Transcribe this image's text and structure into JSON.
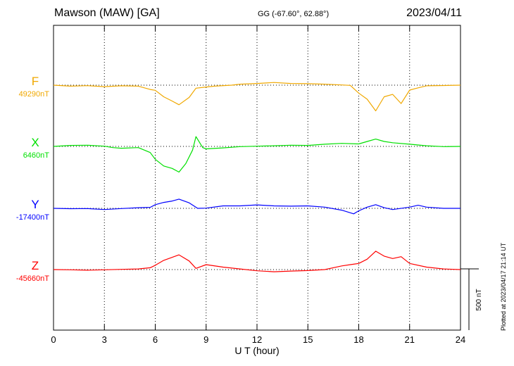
{
  "header": {
    "station": "Mawson (MAW)  [GA]",
    "coords": "GG (-67.60°,  62.88°)",
    "date": "2023/04/11"
  },
  "plotted_note": "Plotted at 2023/04/17 21:14 UT",
  "chart_data": {
    "type": "line",
    "xlabel": "U T (hour)",
    "xlim": [
      0,
      24
    ],
    "xticks": [
      0,
      3,
      6,
      9,
      12,
      15,
      18,
      21,
      24
    ],
    "scale_bar_label": "500 nT",
    "scale_bar_nT": 500,
    "series": [
      {
        "name": "F",
        "baseline_label": "49290nT",
        "baseline_nT": 49290,
        "color": "#f0a800",
        "points": [
          [
            0,
            49290
          ],
          [
            1,
            49282
          ],
          [
            2,
            49286
          ],
          [
            3,
            49278
          ],
          [
            4,
            49285
          ],
          [
            5,
            49282
          ],
          [
            5.7,
            49255
          ],
          [
            6,
            49248
          ],
          [
            6.5,
            49195
          ],
          [
            7,
            49160
          ],
          [
            7.4,
            49130
          ],
          [
            8,
            49190
          ],
          [
            8.4,
            49265
          ],
          [
            9,
            49275
          ],
          [
            9.5,
            49282
          ],
          [
            10.5,
            49290
          ],
          [
            11,
            49298
          ],
          [
            12,
            49304
          ],
          [
            13,
            49312
          ],
          [
            14,
            49304
          ],
          [
            15,
            49302
          ],
          [
            16,
            49298
          ],
          [
            17,
            49292
          ],
          [
            17.5,
            49288
          ],
          [
            18,
            49225
          ],
          [
            18.5,
            49175
          ],
          [
            19,
            49080
          ],
          [
            19.5,
            49195
          ],
          [
            20,
            49215
          ],
          [
            20.5,
            49140
          ],
          [
            21,
            49250
          ],
          [
            21.5,
            49268
          ],
          [
            22,
            49285
          ],
          [
            23,
            49287
          ],
          [
            24,
            49290
          ]
        ]
      },
      {
        "name": "X",
        "baseline_label": "6460nT",
        "baseline_nT": 6460,
        "color": "#00e000",
        "points": [
          [
            0,
            6460
          ],
          [
            1,
            6468
          ],
          [
            2,
            6470
          ],
          [
            3,
            6462
          ],
          [
            3.5,
            6450
          ],
          [
            4,
            6445
          ],
          [
            5,
            6450
          ],
          [
            5.7,
            6410
          ],
          [
            6,
            6355
          ],
          [
            6.5,
            6300
          ],
          [
            7,
            6280
          ],
          [
            7.4,
            6250
          ],
          [
            7.8,
            6320
          ],
          [
            8.2,
            6430
          ],
          [
            8.4,
            6540
          ],
          [
            8.8,
            6450
          ],
          [
            9,
            6440
          ],
          [
            10,
            6448
          ],
          [
            11,
            6458
          ],
          [
            12,
            6462
          ],
          [
            13,
            6465
          ],
          [
            14,
            6470
          ],
          [
            15,
            6468
          ],
          [
            16,
            6478
          ],
          [
            17,
            6485
          ],
          [
            18,
            6480
          ],
          [
            18.5,
            6500
          ],
          [
            19,
            6520
          ],
          [
            19.5,
            6500
          ],
          [
            20,
            6490
          ],
          [
            21,
            6478
          ],
          [
            22,
            6465
          ],
          [
            23,
            6458
          ],
          [
            24,
            6460
          ]
        ]
      },
      {
        "name": "Y",
        "baseline_label": "-17400nT",
        "baseline_nT": -17400,
        "color": "#0000ff",
        "points": [
          [
            0,
            -17400
          ],
          [
            1,
            -17403
          ],
          [
            2,
            -17402
          ],
          [
            3,
            -17410
          ],
          [
            4,
            -17402
          ],
          [
            5,
            -17395
          ],
          [
            5.7,
            -17392
          ],
          [
            6,
            -17370
          ],
          [
            6.5,
            -17352
          ],
          [
            7,
            -17340
          ],
          [
            7.4,
            -17325
          ],
          [
            8,
            -17355
          ],
          [
            8.5,
            -17400
          ],
          [
            9,
            -17398
          ],
          [
            10,
            -17380
          ],
          [
            11,
            -17380
          ],
          [
            12,
            -17372
          ],
          [
            13,
            -17380
          ],
          [
            14,
            -17382
          ],
          [
            15,
            -17380
          ],
          [
            16,
            -17390
          ],
          [
            17,
            -17415
          ],
          [
            17.7,
            -17445
          ],
          [
            18,
            -17420
          ],
          [
            18.5,
            -17390
          ],
          [
            19,
            -17370
          ],
          [
            19.5,
            -17395
          ],
          [
            20,
            -17410
          ],
          [
            21,
            -17390
          ],
          [
            21.5,
            -17375
          ],
          [
            22,
            -17390
          ],
          [
            23,
            -17400
          ],
          [
            24,
            -17400
          ]
        ]
      },
      {
        "name": "Z",
        "baseline_label": "-45660nT",
        "baseline_nT": -45660,
        "color": "#ff0000",
        "points": [
          [
            0,
            -45660
          ],
          [
            1,
            -45662
          ],
          [
            2,
            -45665
          ],
          [
            3,
            -45662
          ],
          [
            4,
            -45658
          ],
          [
            5,
            -45655
          ],
          [
            5.7,
            -45645
          ],
          [
            6,
            -45625
          ],
          [
            6.5,
            -45585
          ],
          [
            7,
            -45560
          ],
          [
            7.4,
            -45540
          ],
          [
            8,
            -45590
          ],
          [
            8.4,
            -45650
          ],
          [
            9,
            -45620
          ],
          [
            10,
            -45640
          ],
          [
            11,
            -45655
          ],
          [
            12,
            -45670
          ],
          [
            13,
            -45678
          ],
          [
            14,
            -45672
          ],
          [
            15,
            -45668
          ],
          [
            16,
            -45660
          ],
          [
            17,
            -45630
          ],
          [
            17.5,
            -45620
          ],
          [
            18,
            -45610
          ],
          [
            18.5,
            -45575
          ],
          [
            19,
            -45510
          ],
          [
            19.5,
            -45550
          ],
          [
            20,
            -45570
          ],
          [
            20.5,
            -45555
          ],
          [
            21,
            -45610
          ],
          [
            22,
            -45640
          ],
          [
            23,
            -45655
          ],
          [
            24,
            -45660
          ]
        ]
      }
    ]
  }
}
